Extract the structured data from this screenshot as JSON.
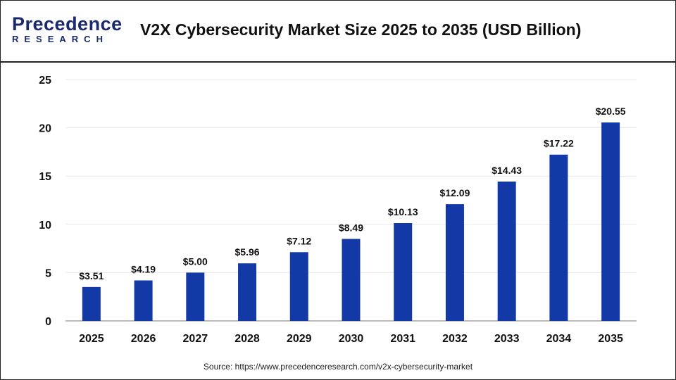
{
  "header": {
    "logo_text": "Precedence",
    "logo_sub": "RESEARCH",
    "title": "V2X Cybersecurity Market Size 2025 to 2035 (USD Billion)"
  },
  "source": "Source: https://www.precedenceresearch.com/v2x-cybersecurity-market",
  "colors": {
    "bar": "#1239a6",
    "grid": "#e8e8e8",
    "axis": "#bbbbbb"
  },
  "chart_data": {
    "type": "bar",
    "title": "V2X Cybersecurity Market Size 2025 to 2035 (USD Billion)",
    "categories": [
      "2025",
      "2026",
      "2027",
      "2028",
      "2029",
      "2030",
      "2031",
      "2032",
      "2033",
      "2034",
      "2035"
    ],
    "values": [
      3.51,
      4.19,
      5.0,
      5.96,
      7.12,
      8.49,
      10.13,
      12.09,
      14.43,
      17.22,
      20.55
    ],
    "data_labels": [
      "$3.51",
      "$4.19",
      "$5.00",
      "$5.96",
      "$7.12",
      "$8.49",
      "$10.13",
      "$12.09",
      "$14.43",
      "$17.22",
      "$20.55"
    ],
    "ylim": [
      0,
      25
    ],
    "yticks": [
      0,
      5,
      10,
      15,
      20,
      25
    ],
    "grid": true,
    "xlabel": "",
    "ylabel": ""
  }
}
